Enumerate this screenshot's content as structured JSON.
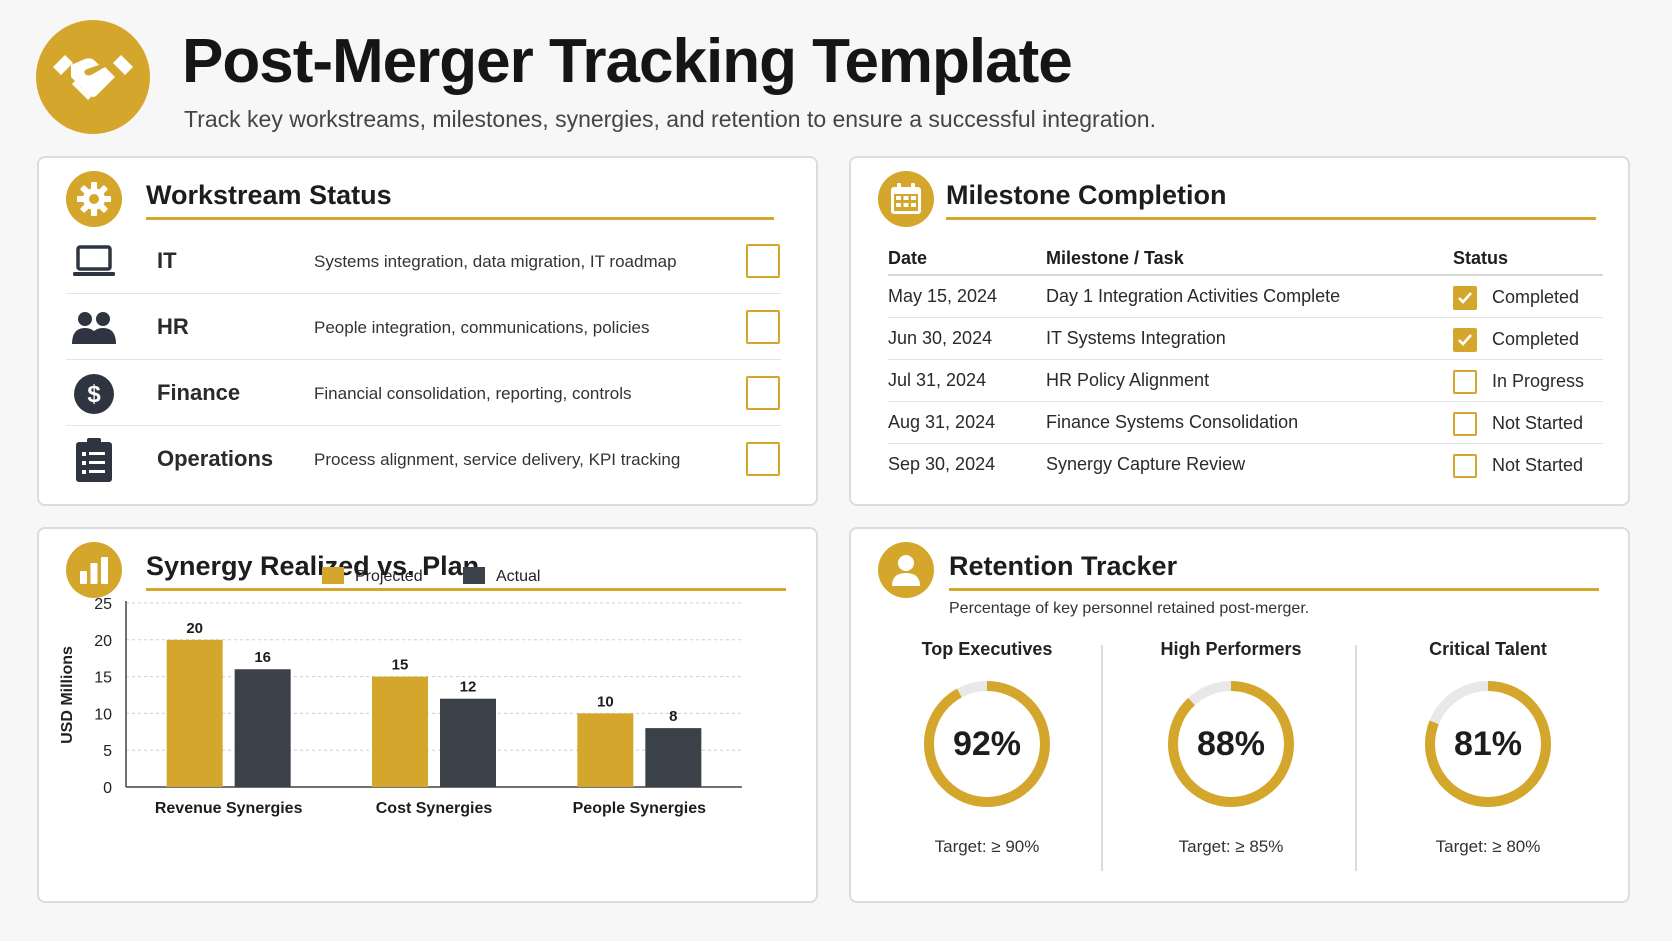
{
  "header": {
    "title": "Post-Merger Tracking Template",
    "subtitle": "Track key workstreams, milestones, synergies, and retention to ensure a successful integration.",
    "logo_icon": "handshake-icon"
  },
  "colors": {
    "accent": "#d4a72c",
    "dark": "#3b4149",
    "ring_track": "#e8e8e8"
  },
  "workstream": {
    "title": "Workstream Status",
    "icon": "gear-icon",
    "rows": [
      {
        "name": "IT",
        "desc": "Systems integration, data migration, IT roadmap",
        "icon": "laptop-icon",
        "checked": false
      },
      {
        "name": "HR",
        "desc": "People integration, communications, policies",
        "icon": "people-icon",
        "checked": false
      },
      {
        "name": "Finance",
        "desc": "Financial consolidation, reporting, controls",
        "icon": "dollar-icon",
        "checked": false
      },
      {
        "name": "Operations",
        "desc": "Process alignment, service delivery, KPI tracking",
        "icon": "clipboard-icon",
        "checked": false
      }
    ]
  },
  "milestones": {
    "title": "Milestone Completion",
    "icon": "calendar-icon",
    "headers": {
      "date": "Date",
      "task": "Milestone / Task",
      "status": "Status"
    },
    "rows": [
      {
        "date": "May 15, 2024",
        "task": "Day 1 Integration Activities Complete",
        "status": "Completed",
        "done": true
      },
      {
        "date": "Jun 30, 2024",
        "task": "IT Systems Integration",
        "status": "Completed",
        "done": true
      },
      {
        "date": "Jul 31, 2024",
        "task": "HR Policy Alignment",
        "status": "In Progress",
        "done": false
      },
      {
        "date": "Aug 31, 2024",
        "task": "Finance Systems Consolidation",
        "status": "Not Started",
        "done": false
      },
      {
        "date": "Sep 30, 2024",
        "task": "Synergy Capture Review",
        "status": "Not Started",
        "done": false
      }
    ]
  },
  "synergy": {
    "title": "Synergy Realized vs. Plan",
    "icon": "bar-chart-icon"
  },
  "chart_data": {
    "type": "bar",
    "title": "Synergy Realized vs. Plan",
    "ylabel": "USD Millions",
    "xlabel": "",
    "categories": [
      "Revenue Synergies",
      "Cost Synergies",
      "People Synergies"
    ],
    "series": [
      {
        "name": "Projected",
        "color": "#d4a72c",
        "values": [
          20,
          15,
          10
        ]
      },
      {
        "name": "Actual",
        "color": "#3b4149",
        "values": [
          16,
          12,
          8
        ]
      }
    ],
    "ylim": [
      0,
      25
    ],
    "yticks": [
      0,
      5,
      10,
      15,
      20,
      25
    ],
    "grid": true,
    "legend": "top-center"
  },
  "retention": {
    "title": "Retention Tracker",
    "icon": "person-icon",
    "subtitle": "Percentage of key personnel retained post-merger.",
    "items": [
      {
        "label": "Top Executives",
        "pct_text": "92%",
        "value": 92,
        "target": "Target: ≥ 90%"
      },
      {
        "label": "High Performers",
        "pct_text": "88%",
        "value": 88,
        "target": "Target: ≥ 85%"
      },
      {
        "label": "Critical Talent",
        "pct_text": "81%",
        "value": 81,
        "target": "Target: ≥ 80%"
      }
    ]
  }
}
